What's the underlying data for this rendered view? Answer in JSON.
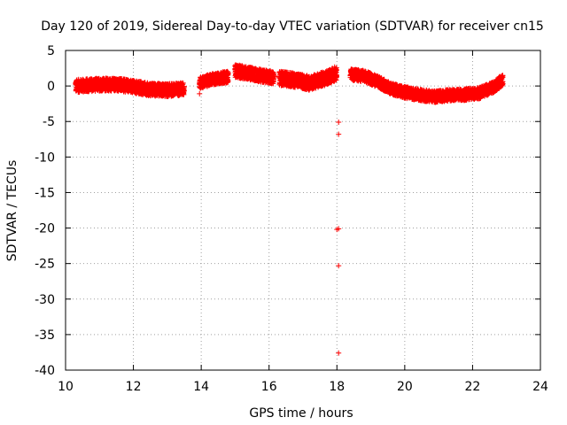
{
  "chart_data": {
    "type": "scatter",
    "title": "Day 120 of 2019, Sidereal Day-to-day VTEC variation (SDTVAR) for receiver cn15",
    "xlabel": "GPS time / hours",
    "ylabel": "SDTVAR / TECUs",
    "xlim": [
      10,
      24
    ],
    "ylim": [
      -40,
      5
    ],
    "xticks": [
      "10",
      "12",
      "14",
      "16",
      "18",
      "20",
      "22",
      "24"
    ],
    "yticks": [
      "5",
      "0",
      "-5",
      "-10",
      "-15",
      "-20",
      "-25",
      "-30",
      "-35",
      "-40"
    ],
    "grid": true,
    "marker": "+",
    "color": "#ff0000",
    "series": [
      {
        "name": "SDTVAR",
        "band_segments": [
          {
            "x0": 10.3,
            "x1": 13.5,
            "profile": [
              [
                10.3,
                0.0
              ],
              [
                11.0,
                0.2
              ],
              [
                11.5,
                0.2
              ],
              [
                12.0,
                -0.1
              ],
              [
                12.5,
                -0.5
              ],
              [
                13.0,
                -0.6
              ],
              [
                13.5,
                -0.4
              ]
            ],
            "half_width": 0.9
          },
          {
            "x0": 13.95,
            "x1": 14.8,
            "profile": [
              [
                13.95,
                0.4
              ],
              [
                14.3,
                0.9
              ],
              [
                14.8,
                1.3
              ]
            ],
            "half_width": 0.8
          },
          {
            "x0": 15.0,
            "x1": 16.15,
            "profile": [
              [
                15.0,
                2.1
              ],
              [
                15.4,
                1.8
              ],
              [
                15.8,
                1.4
              ],
              [
                16.15,
                1.2
              ]
            ],
            "half_width": 0.9
          },
          {
            "x0": 16.3,
            "x1": 18.0,
            "profile": [
              [
                16.3,
                1.1
              ],
              [
                16.8,
                0.8
              ],
              [
                17.2,
                0.4
              ],
              [
                17.6,
                1.0
              ],
              [
                18.0,
                1.8
              ]
            ],
            "half_width": 1.0
          },
          {
            "x0": 18.4,
            "x1": 22.9,
            "profile": [
              [
                18.4,
                1.6
              ],
              [
                18.8,
                1.4
              ],
              [
                19.2,
                0.6
              ],
              [
                19.6,
                -0.4
              ],
              [
                20.0,
                -0.9
              ],
              [
                20.5,
                -1.3
              ],
              [
                20.9,
                -1.5
              ],
              [
                21.3,
                -1.3
              ],
              [
                21.8,
                -1.2
              ],
              [
                22.2,
                -1.0
              ],
              [
                22.6,
                -0.2
              ],
              [
                22.9,
                0.9
              ]
            ],
            "half_width": 0.8
          }
        ],
        "outliers": [
          {
            "x": 13.95,
            "y": -1.1
          },
          {
            "x": 18.05,
            "y": -5.1
          },
          {
            "x": 18.05,
            "y": -6.8
          },
          {
            "x": 18.0,
            "y": -20.2
          },
          {
            "x": 18.05,
            "y": -20.1
          },
          {
            "x": 18.05,
            "y": -25.3
          },
          {
            "x": 18.05,
            "y": -37.6
          }
        ]
      }
    ]
  }
}
